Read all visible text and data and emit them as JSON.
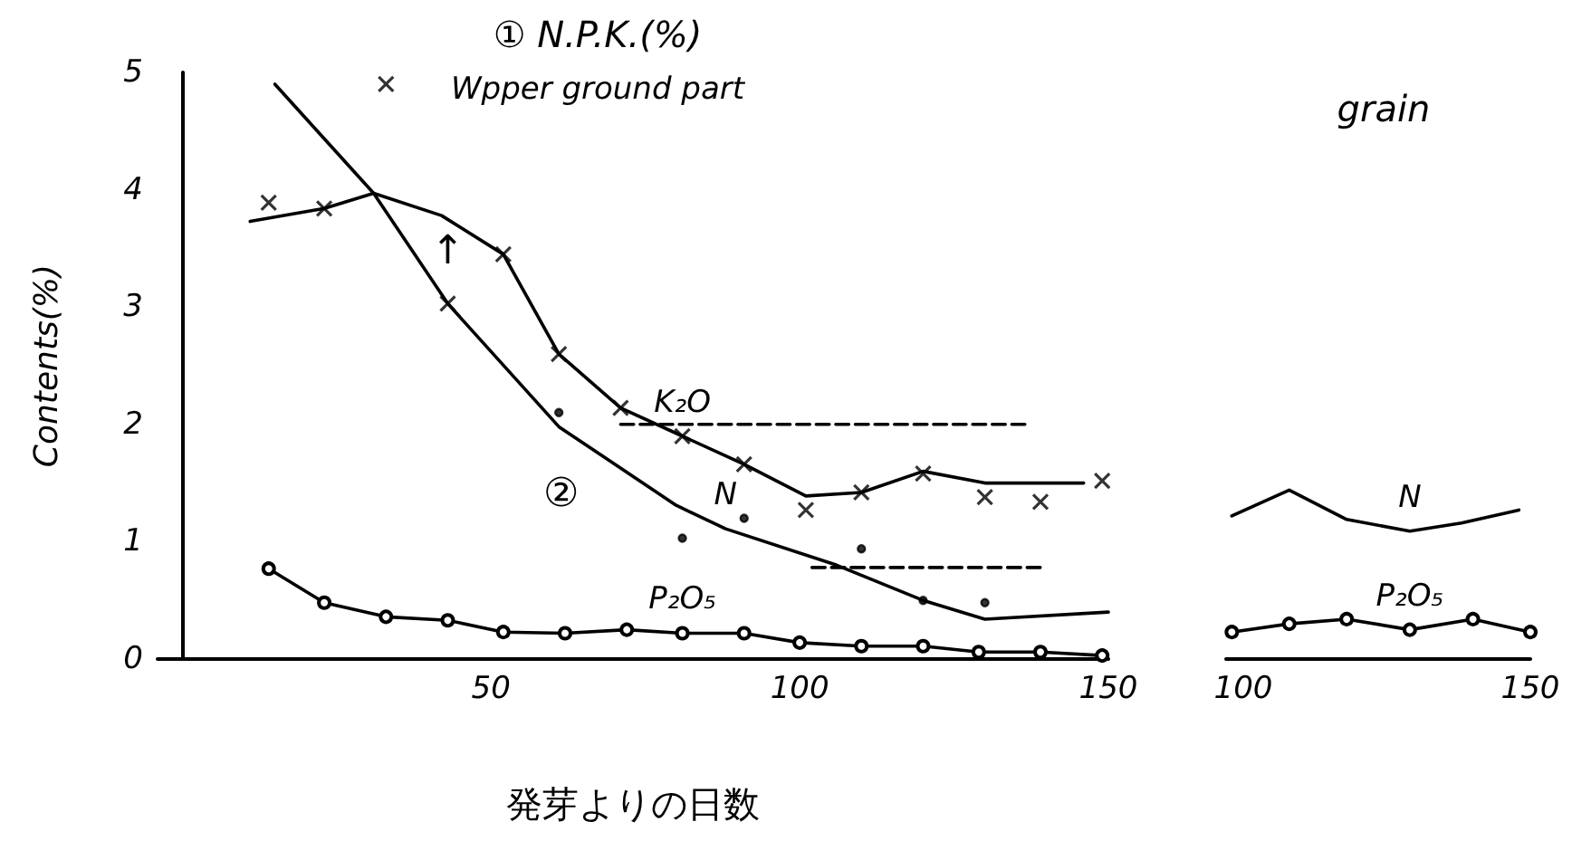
{
  "chart_data": [
    {
      "type": "line",
      "title": "① N.P.K.(%)",
      "subtitle": "Wpper ground part",
      "xlabel": "発芽よりの日数",
      "ylabel": "Contents(%)",
      "xlim": [
        -4,
        150
      ],
      "xticks": [
        50,
        100,
        150
      ],
      "ylim": [
        0,
        5
      ],
      "yticks": [
        0,
        1,
        2,
        3,
        4,
        5
      ],
      "grid": false,
      "legend": false,
      "annotations": [
        "↑",
        "②"
      ],
      "series": [
        {
          "name": "K₂O",
          "color": "#000000",
          "marker": "none",
          "x": [
            11,
            23,
            31,
            42,
            52,
            61,
            71,
            81,
            91,
            101,
            110,
            120,
            130,
            146
          ],
          "values": [
            3.73,
            3.84,
            3.97,
            3.78,
            3.45,
            2.6,
            2.14,
            1.9,
            1.66,
            1.39,
            1.42,
            1.6,
            1.5,
            1.5
          ]
        },
        {
          "type": "scatter",
          "color": "#000000",
          "marker": "cross",
          "x": [
            14,
            23,
            33,
            43,
            52,
            61,
            71,
            81,
            91,
            101,
            110,
            120,
            130,
            139,
            149
          ],
          "values": [
            3.89,
            3.84,
            4.9,
            3.03,
            3.45,
            2.6,
            2.14,
            1.9,
            1.66,
            1.27,
            1.42,
            1.58,
            1.38,
            1.34,
            1.52
          ]
        },
        {
          "name": "N",
          "color": "#000000",
          "marker": "none",
          "x": [
            15,
            31,
            43,
            61,
            80,
            88,
            106,
            120,
            130,
            150
          ],
          "values": [
            4.9,
            3.97,
            3.03,
            1.98,
            1.31,
            1.11,
            0.8,
            0.5,
            0.34,
            0.4
          ]
        },
        {
          "type": "scatter",
          "color": "#000000",
          "marker": "circle",
          "x": [
            61,
            81,
            91,
            110,
            120,
            130
          ],
          "values": [
            2.1,
            1.03,
            1.2,
            0.94,
            0.5,
            0.48
          ]
        },
        {
          "name": "P₂O₅",
          "color": "#000000",
          "marker": "circle",
          "x": [
            14,
            23,
            33,
            43,
            52,
            62,
            72,
            81,
            91,
            100,
            110,
            120,
            129,
            139,
            149
          ],
          "values": [
            0.77,
            0.48,
            0.36,
            0.33,
            0.23,
            0.22,
            0.25,
            0.22,
            0.22,
            0.14,
            0.11,
            0.11,
            0.06,
            0.06,
            0.03
          ]
        },
        {
          "color": "#000000",
          "marker": "none",
          "line_style": "dashed",
          "x": [
            71,
            137
          ],
          "values": [
            2.0,
            2.0
          ]
        },
        {
          "color": "#000000",
          "marker": "none",
          "line_style": "dashed",
          "x": [
            102,
            140
          ],
          "values": [
            0.78,
            0.78
          ]
        }
      ]
    },
    {
      "type": "line",
      "title": "grain",
      "xlim": [
        97,
        150
      ],
      "xticks": [
        100,
        150
      ],
      "ylim": [
        0,
        5
      ],
      "grid": false,
      "legend": false,
      "tick_labels": "x",
      "series": [
        {
          "name": "N",
          "color": "#000000",
          "marker": "none",
          "x": [
            98,
            108,
            118,
            129,
            138,
            148
          ],
          "values": [
            1.22,
            1.44,
            1.19,
            1.09,
            1.16,
            1.27
          ]
        },
        {
          "name": "P₂O₅",
          "color": "#000000",
          "marker": "circle",
          "x": [
            98,
            108,
            118,
            129,
            140,
            150
          ],
          "values": [
            0.23,
            0.3,
            0.34,
            0.25,
            0.34,
            0.23
          ]
        }
      ]
    }
  ]
}
